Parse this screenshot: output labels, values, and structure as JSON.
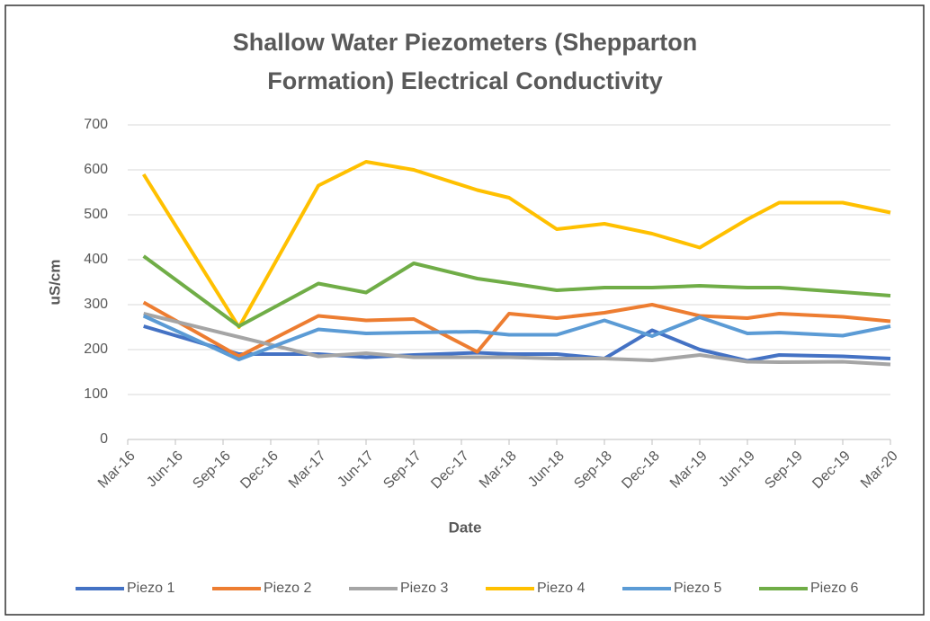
{
  "chart_data": {
    "type": "line",
    "title": "Shallow Water Piezometers (Shepparton Formation) Electrical Conductivity",
    "xlabel": "Date",
    "ylabel": "uS/cm",
    "x": [
      "2016-04",
      "2016-10",
      "2017-03",
      "2017-06",
      "2017-09",
      "2018-01",
      "2018-03",
      "2018-06",
      "2018-09",
      "2018-12",
      "2019-03",
      "2019-06",
      "2019-08",
      "2019-12",
      "2020-03"
    ],
    "xlim": [
      "2016-03",
      "2020-03"
    ],
    "xticks": [
      {
        "value": "2016-03",
        "label": "Mar-16"
      },
      {
        "value": "2016-06",
        "label": "Jun-16"
      },
      {
        "value": "2016-09",
        "label": "Sep-16"
      },
      {
        "value": "2016-12",
        "label": "Dec-16"
      },
      {
        "value": "2017-03",
        "label": "Mar-17"
      },
      {
        "value": "2017-06",
        "label": "Jun-17"
      },
      {
        "value": "2017-09",
        "label": "Sep-17"
      },
      {
        "value": "2017-12",
        "label": "Dec-17"
      },
      {
        "value": "2018-03",
        "label": "Mar-18"
      },
      {
        "value": "2018-06",
        "label": "Jun-18"
      },
      {
        "value": "2018-09",
        "label": "Sep-18"
      },
      {
        "value": "2018-12",
        "label": "Dec-18"
      },
      {
        "value": "2019-03",
        "label": "Mar-19"
      },
      {
        "value": "2019-06",
        "label": "Jun-19"
      },
      {
        "value": "2019-09",
        "label": "Sep-19"
      },
      {
        "value": "2019-12",
        "label": "Dec-19"
      },
      {
        "value": "2020-03",
        "label": "Mar-20"
      }
    ],
    "ylim": [
      0,
      700
    ],
    "yticks": [
      0,
      100,
      200,
      300,
      400,
      500,
      600,
      700
    ],
    "grid": true,
    "legend": "bottom",
    "series": [
      {
        "name": "Piezo 1",
        "color": "#4472c4",
        "values": [
          252,
          190,
          190,
          183,
          188,
          193,
          190,
          190,
          180,
          243,
          200,
          175,
          188,
          185,
          180
        ]
      },
      {
        "name": "Piezo 2",
        "color": "#ed7d31",
        "values": [
          305,
          185,
          275,
          265,
          268,
          195,
          280,
          270,
          282,
          300,
          275,
          270,
          280,
          273,
          263
        ]
      },
      {
        "name": "Piezo 3",
        "color": "#a5a5a5",
        "values": [
          280,
          228,
          185,
          192,
          183,
          183,
          183,
          180,
          180,
          176,
          188,
          173,
          172,
          173,
          167
        ]
      },
      {
        "name": "Piezo 4",
        "color": "#ffc000",
        "values": [
          590,
          250,
          565,
          618,
          600,
          555,
          538,
          468,
          480,
          458,
          427,
          490,
          527,
          527,
          505
        ]
      },
      {
        "name": "Piezo 5",
        "color": "#5b9bd5",
        "values": [
          275,
          178,
          245,
          236,
          238,
          240,
          233,
          233,
          265,
          230,
          272,
          236,
          238,
          231,
          252
        ]
      },
      {
        "name": "Piezo 6",
        "color": "#70ad47",
        "values": [
          408,
          252,
          347,
          327,
          392,
          358,
          348,
          332,
          338,
          338,
          342,
          338,
          338,
          328,
          320
        ]
      }
    ]
  }
}
